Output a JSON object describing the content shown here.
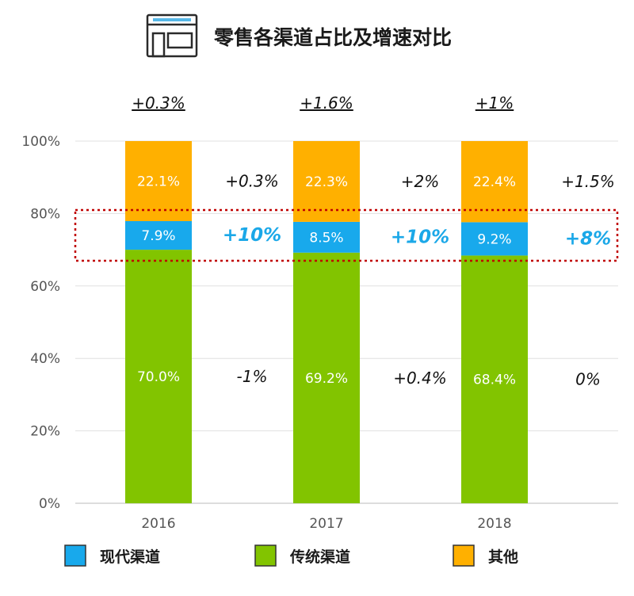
{
  "title": "零售各渠道占比及增速对比",
  "icon": "storefront-icon",
  "chart_data": {
    "type": "bar",
    "stacked": true,
    "categories": [
      "2016",
      "2017",
      "2018"
    ],
    "ylim": [
      0,
      100
    ],
    "yticks": [
      "0%",
      "20%",
      "40%",
      "60%",
      "80%",
      "100%"
    ],
    "grid": true,
    "legend_position": "bottom",
    "series": [
      {
        "name": "传统渠道",
        "color": "#82c400",
        "values": [
          70.0,
          69.2,
          68.4
        ],
        "labels": [
          "70.0%",
          "69.2%",
          "68.4%"
        ],
        "growth": [
          "-1%",
          "+0.4%",
          "0%"
        ]
      },
      {
        "name": "现代渠道",
        "color": "#18a9ec",
        "values": [
          7.9,
          8.5,
          9.2
        ],
        "labels": [
          "7.9%",
          "8.5%",
          "9.2%"
        ],
        "growth": [
          "+10%",
          "+10%",
          "+8%"
        ],
        "highlight": true
      },
      {
        "name": "其他",
        "color": "#ffb000",
        "values": [
          22.1,
          22.3,
          22.4
        ],
        "labels": [
          "22.1%",
          "22.3%",
          "22.4%"
        ],
        "growth": [
          "+0.3%",
          "+2%",
          "+1.5%"
        ]
      }
    ],
    "total_growth": [
      "+0.3%",
      "+1.6%",
      "+1%"
    ],
    "legend_order": [
      "现代渠道",
      "传统渠道",
      "其他"
    ],
    "highlight_color": "#c00000"
  }
}
